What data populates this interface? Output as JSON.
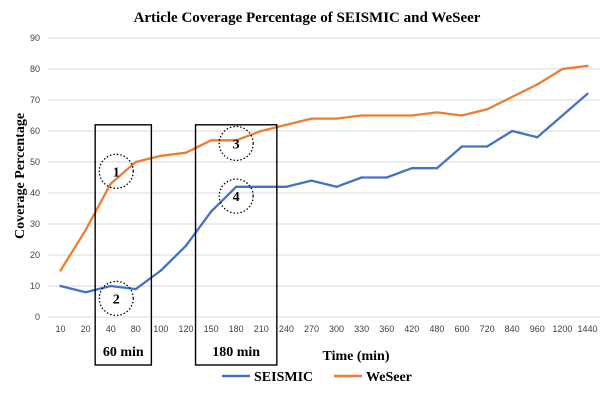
{
  "chart_data": {
    "type": "line",
    "title": "Article Coverage Percentage of SEISMIC and WeSeer",
    "xlabel": "Time (min)",
    "ylabel": "Coverage Percentage",
    "categories": [
      "10",
      "20",
      "40",
      "80",
      "100",
      "120",
      "150",
      "180",
      "210",
      "240",
      "270",
      "300",
      "330",
      "360",
      "420",
      "480",
      "600",
      "720",
      "840",
      "960",
      "1200",
      "1440"
    ],
    "ylim": [
      0,
      90
    ],
    "yticks": [
      "0",
      "10",
      "20",
      "30",
      "40",
      "50",
      "60",
      "70",
      "80",
      "90"
    ],
    "grid": true,
    "legend_position": "bottom",
    "series": [
      {
        "name": "SEISMIC",
        "color": "#4472c4",
        "values": [
          10,
          8,
          10,
          9,
          15,
          23,
          34,
          42,
          42,
          42,
          44,
          42,
          45,
          45,
          48,
          48,
          55,
          55,
          60,
          58,
          65,
          72
        ]
      },
      {
        "name": "WeSeer",
        "color": "#ed7d31",
        "values": [
          15,
          28,
          43,
          50,
          52,
          53,
          57,
          57,
          60,
          62,
          64,
          64,
          65,
          65,
          65,
          66,
          65,
          67,
          71,
          75,
          80,
          81
        ]
      }
    ],
    "annotations": {
      "boxes": [
        {
          "label": "60 min",
          "from": "40",
          "to": "80"
        },
        {
          "label": "180 min",
          "from": "150",
          "to": "210"
        }
      ],
      "circles": [
        {
          "label": "1",
          "category": "40",
          "y": 47
        },
        {
          "label": "2",
          "category": "40",
          "y": 6
        },
        {
          "label": "3",
          "category": "180",
          "y": 56
        },
        {
          "label": "4",
          "category": "180",
          "y": 39
        }
      ]
    }
  }
}
